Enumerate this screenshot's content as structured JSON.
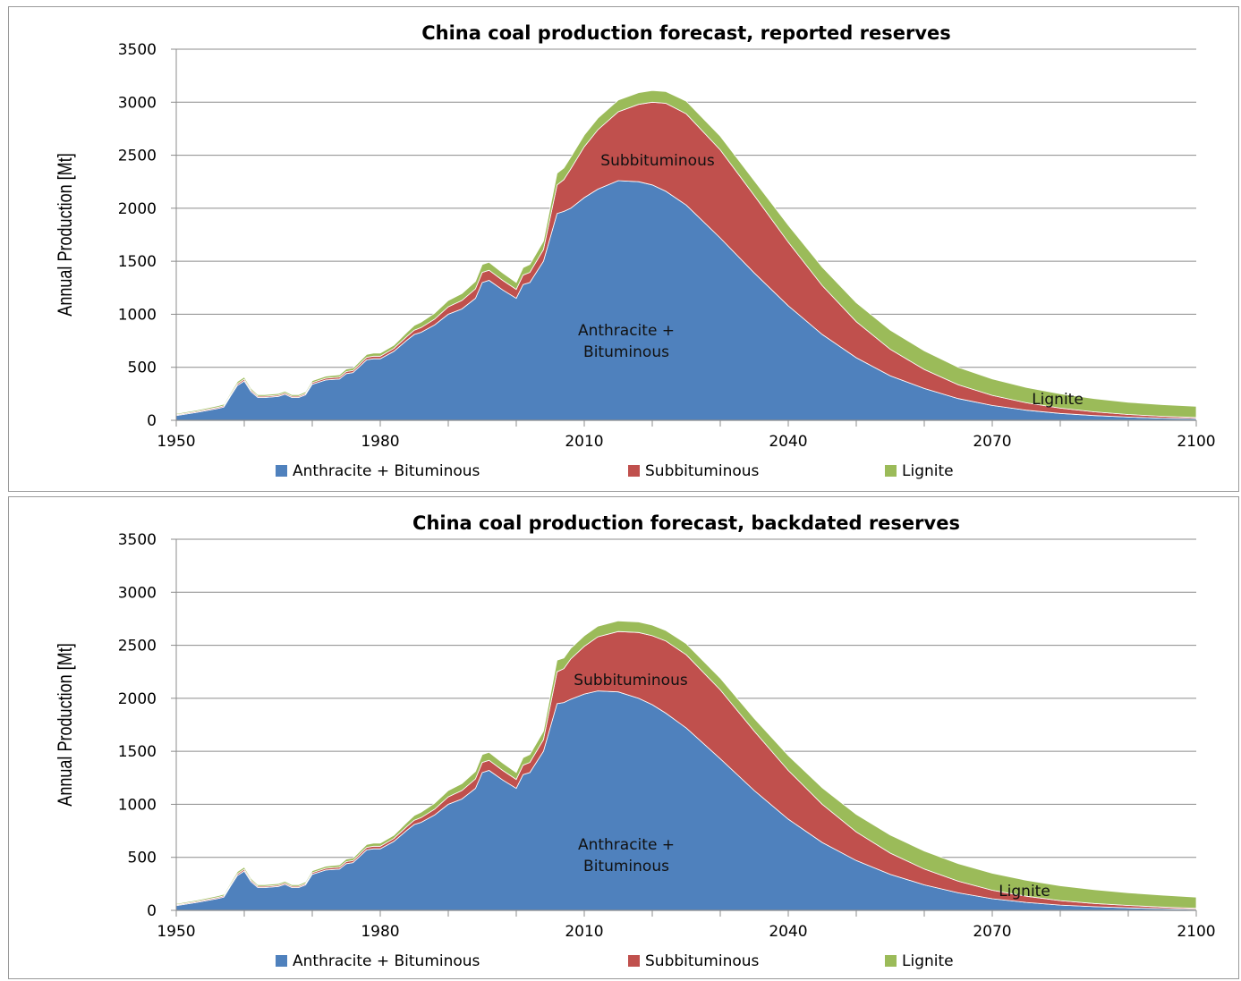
{
  "chart_data": [
    {
      "type": "area",
      "stacked": true,
      "title": "China coal production forecast, reported reserves",
      "xlabel": "",
      "ylabel": "Annual Production [Mt]",
      "xlim": [
        1950,
        2100
      ],
      "ylim": [
        0,
        3500
      ],
      "xticks": [
        1950,
        1980,
        2010,
        2040,
        2070,
        2100
      ],
      "yticks": [
        0,
        500,
        1000,
        1500,
        2000,
        2500,
        3000,
        3500
      ],
      "grid": "horizontal",
      "legend": "bottom",
      "x": [
        1950,
        1953,
        1956,
        1957,
        1958,
        1959,
        1960,
        1961,
        1962,
        1963,
        1965,
        1966,
        1967,
        1968,
        1969,
        1970,
        1972,
        1974,
        1975,
        1976,
        1977,
        1978,
        1979,
        1980,
        1982,
        1984,
        1985,
        1986,
        1988,
        1990,
        1992,
        1994,
        1995,
        1996,
        1998,
        2000,
        2001,
        2002,
        2004,
        2006,
        2007,
        2008,
        2010,
        2012,
        2015,
        2018,
        2020,
        2022,
        2025,
        2030,
        2035,
        2040,
        2045,
        2050,
        2055,
        2060,
        2065,
        2070,
        2075,
        2080,
        2085,
        2090,
        2095,
        2100
      ],
      "series": [
        {
          "name": "Anthracite + Bituminous",
          "color": "#4f81bd",
          "values": [
            45,
            75,
            110,
            125,
            230,
            330,
            370,
            270,
            215,
            215,
            225,
            245,
            215,
            215,
            240,
            340,
            380,
            390,
            440,
            450,
            510,
            570,
            580,
            580,
            650,
            760,
            810,
            830,
            900,
            1000,
            1050,
            1150,
            1300,
            1320,
            1230,
            1150,
            1280,
            1300,
            1500,
            1950,
            1970,
            2000,
            2100,
            2180,
            2260,
            2250,
            2220,
            2160,
            2030,
            1720,
            1390,
            1080,
            810,
            590,
            420,
            300,
            205,
            140,
            95,
            65,
            45,
            30,
            20,
            15
          ]
        },
        {
          "name": "Subbituminous",
          "color": "#c0504d",
          "values": [
            8,
            9,
            11,
            12,
            14,
            16,
            17,
            14,
            12,
            12,
            12,
            13,
            12,
            12,
            13,
            15,
            17,
            18,
            20,
            20,
            22,
            24,
            25,
            25,
            28,
            35,
            40,
            45,
            55,
            70,
            80,
            90,
            95,
            95,
            90,
            85,
            90,
            95,
            110,
            270,
            300,
            370,
            480,
            560,
            650,
            730,
            780,
            830,
            860,
            830,
            730,
            600,
            460,
            340,
            250,
            180,
            130,
            95,
            70,
            50,
            35,
            25,
            18,
            12
          ]
        },
        {
          "name": "Lignite",
          "color": "#9bbb59",
          "values": [
            10,
            12,
            14,
            15,
            17,
            19,
            20,
            17,
            15,
            15,
            15,
            16,
            15,
            15,
            16,
            18,
            20,
            21,
            23,
            23,
            25,
            27,
            28,
            28,
            30,
            40,
            45,
            50,
            55,
            60,
            65,
            70,
            75,
            75,
            70,
            65,
            70,
            75,
            80,
            110,
            110,
            110,
            110,
            110,
            110,
            110,
            110,
            110,
            120,
            130,
            140,
            160,
            175,
            180,
            180,
            175,
            165,
            155,
            145,
            135,
            125,
            115,
            110,
            105
          ]
        }
      ],
      "annotations": {
        "blue": "Anthracite +\nBituminous",
        "red": "Subbituminous",
        "green": "Lignite"
      }
    },
    {
      "type": "area",
      "stacked": true,
      "title": "China coal production forecast, backdated reserves",
      "xlabel": "",
      "ylabel": "Annual Production [Mt]",
      "xlim": [
        1950,
        2100
      ],
      "ylim": [
        0,
        3500
      ],
      "xticks": [
        1950,
        1980,
        2010,
        2040,
        2070,
        2100
      ],
      "yticks": [
        0,
        500,
        1000,
        1500,
        2000,
        2500,
        3000,
        3500
      ],
      "grid": "horizontal",
      "legend": "bottom",
      "x": [
        1950,
        1953,
        1956,
        1957,
        1958,
        1959,
        1960,
        1961,
        1962,
        1963,
        1965,
        1966,
        1967,
        1968,
        1969,
        1970,
        1972,
        1974,
        1975,
        1976,
        1977,
        1978,
        1979,
        1980,
        1982,
        1984,
        1985,
        1986,
        1988,
        1990,
        1992,
        1994,
        1995,
        1996,
        1998,
        2000,
        2001,
        2002,
        2004,
        2006,
        2007,
        2008,
        2010,
        2012,
        2015,
        2018,
        2020,
        2022,
        2025,
        2030,
        2035,
        2040,
        2045,
        2050,
        2055,
        2060,
        2065,
        2070,
        2075,
        2080,
        2085,
        2090,
        2095,
        2100
      ],
      "series": [
        {
          "name": "Anthracite + Bituminous",
          "color": "#4f81bd",
          "values": [
            45,
            75,
            110,
            125,
            230,
            330,
            370,
            270,
            215,
            215,
            225,
            245,
            215,
            215,
            240,
            340,
            380,
            390,
            440,
            450,
            510,
            570,
            580,
            580,
            650,
            760,
            810,
            830,
            900,
            1000,
            1050,
            1150,
            1300,
            1320,
            1230,
            1150,
            1280,
            1300,
            1500,
            1950,
            1960,
            1990,
            2040,
            2070,
            2060,
            2000,
            1940,
            1860,
            1720,
            1430,
            1130,
            860,
            640,
            470,
            340,
            240,
            165,
            110,
            75,
            50,
            35,
            24,
            16,
            10
          ]
        },
        {
          "name": "Subbituminous",
          "color": "#c0504d",
          "values": [
            8,
            9,
            11,
            12,
            14,
            16,
            17,
            14,
            12,
            12,
            12,
            13,
            12,
            12,
            13,
            15,
            17,
            18,
            20,
            20,
            22,
            24,
            25,
            25,
            28,
            35,
            40,
            45,
            55,
            70,
            80,
            90,
            95,
            95,
            90,
            85,
            90,
            95,
            110,
            300,
            320,
            380,
            450,
            510,
            570,
            620,
            650,
            680,
            690,
            650,
            560,
            460,
            360,
            270,
            200,
            150,
            110,
            80,
            58,
            42,
            30,
            22,
            15,
            10
          ]
        },
        {
          "name": "Lignite",
          "color": "#9bbb59",
          "values": [
            10,
            12,
            14,
            15,
            17,
            19,
            20,
            17,
            15,
            15,
            15,
            16,
            15,
            15,
            16,
            18,
            20,
            21,
            23,
            23,
            25,
            27,
            28,
            28,
            30,
            40,
            45,
            50,
            55,
            60,
            65,
            70,
            75,
            75,
            70,
            65,
            70,
            75,
            80,
            110,
            100,
            100,
            100,
            100,
            100,
            100,
            100,
            100,
            105,
            110,
            120,
            140,
            155,
            165,
            170,
            170,
            165,
            160,
            150,
            140,
            130,
            120,
            112,
            105
          ]
        }
      ],
      "annotations": {
        "blue": "Anthracite +\nBituminous",
        "red": "Subbituminous",
        "green": "Lignite"
      }
    }
  ]
}
